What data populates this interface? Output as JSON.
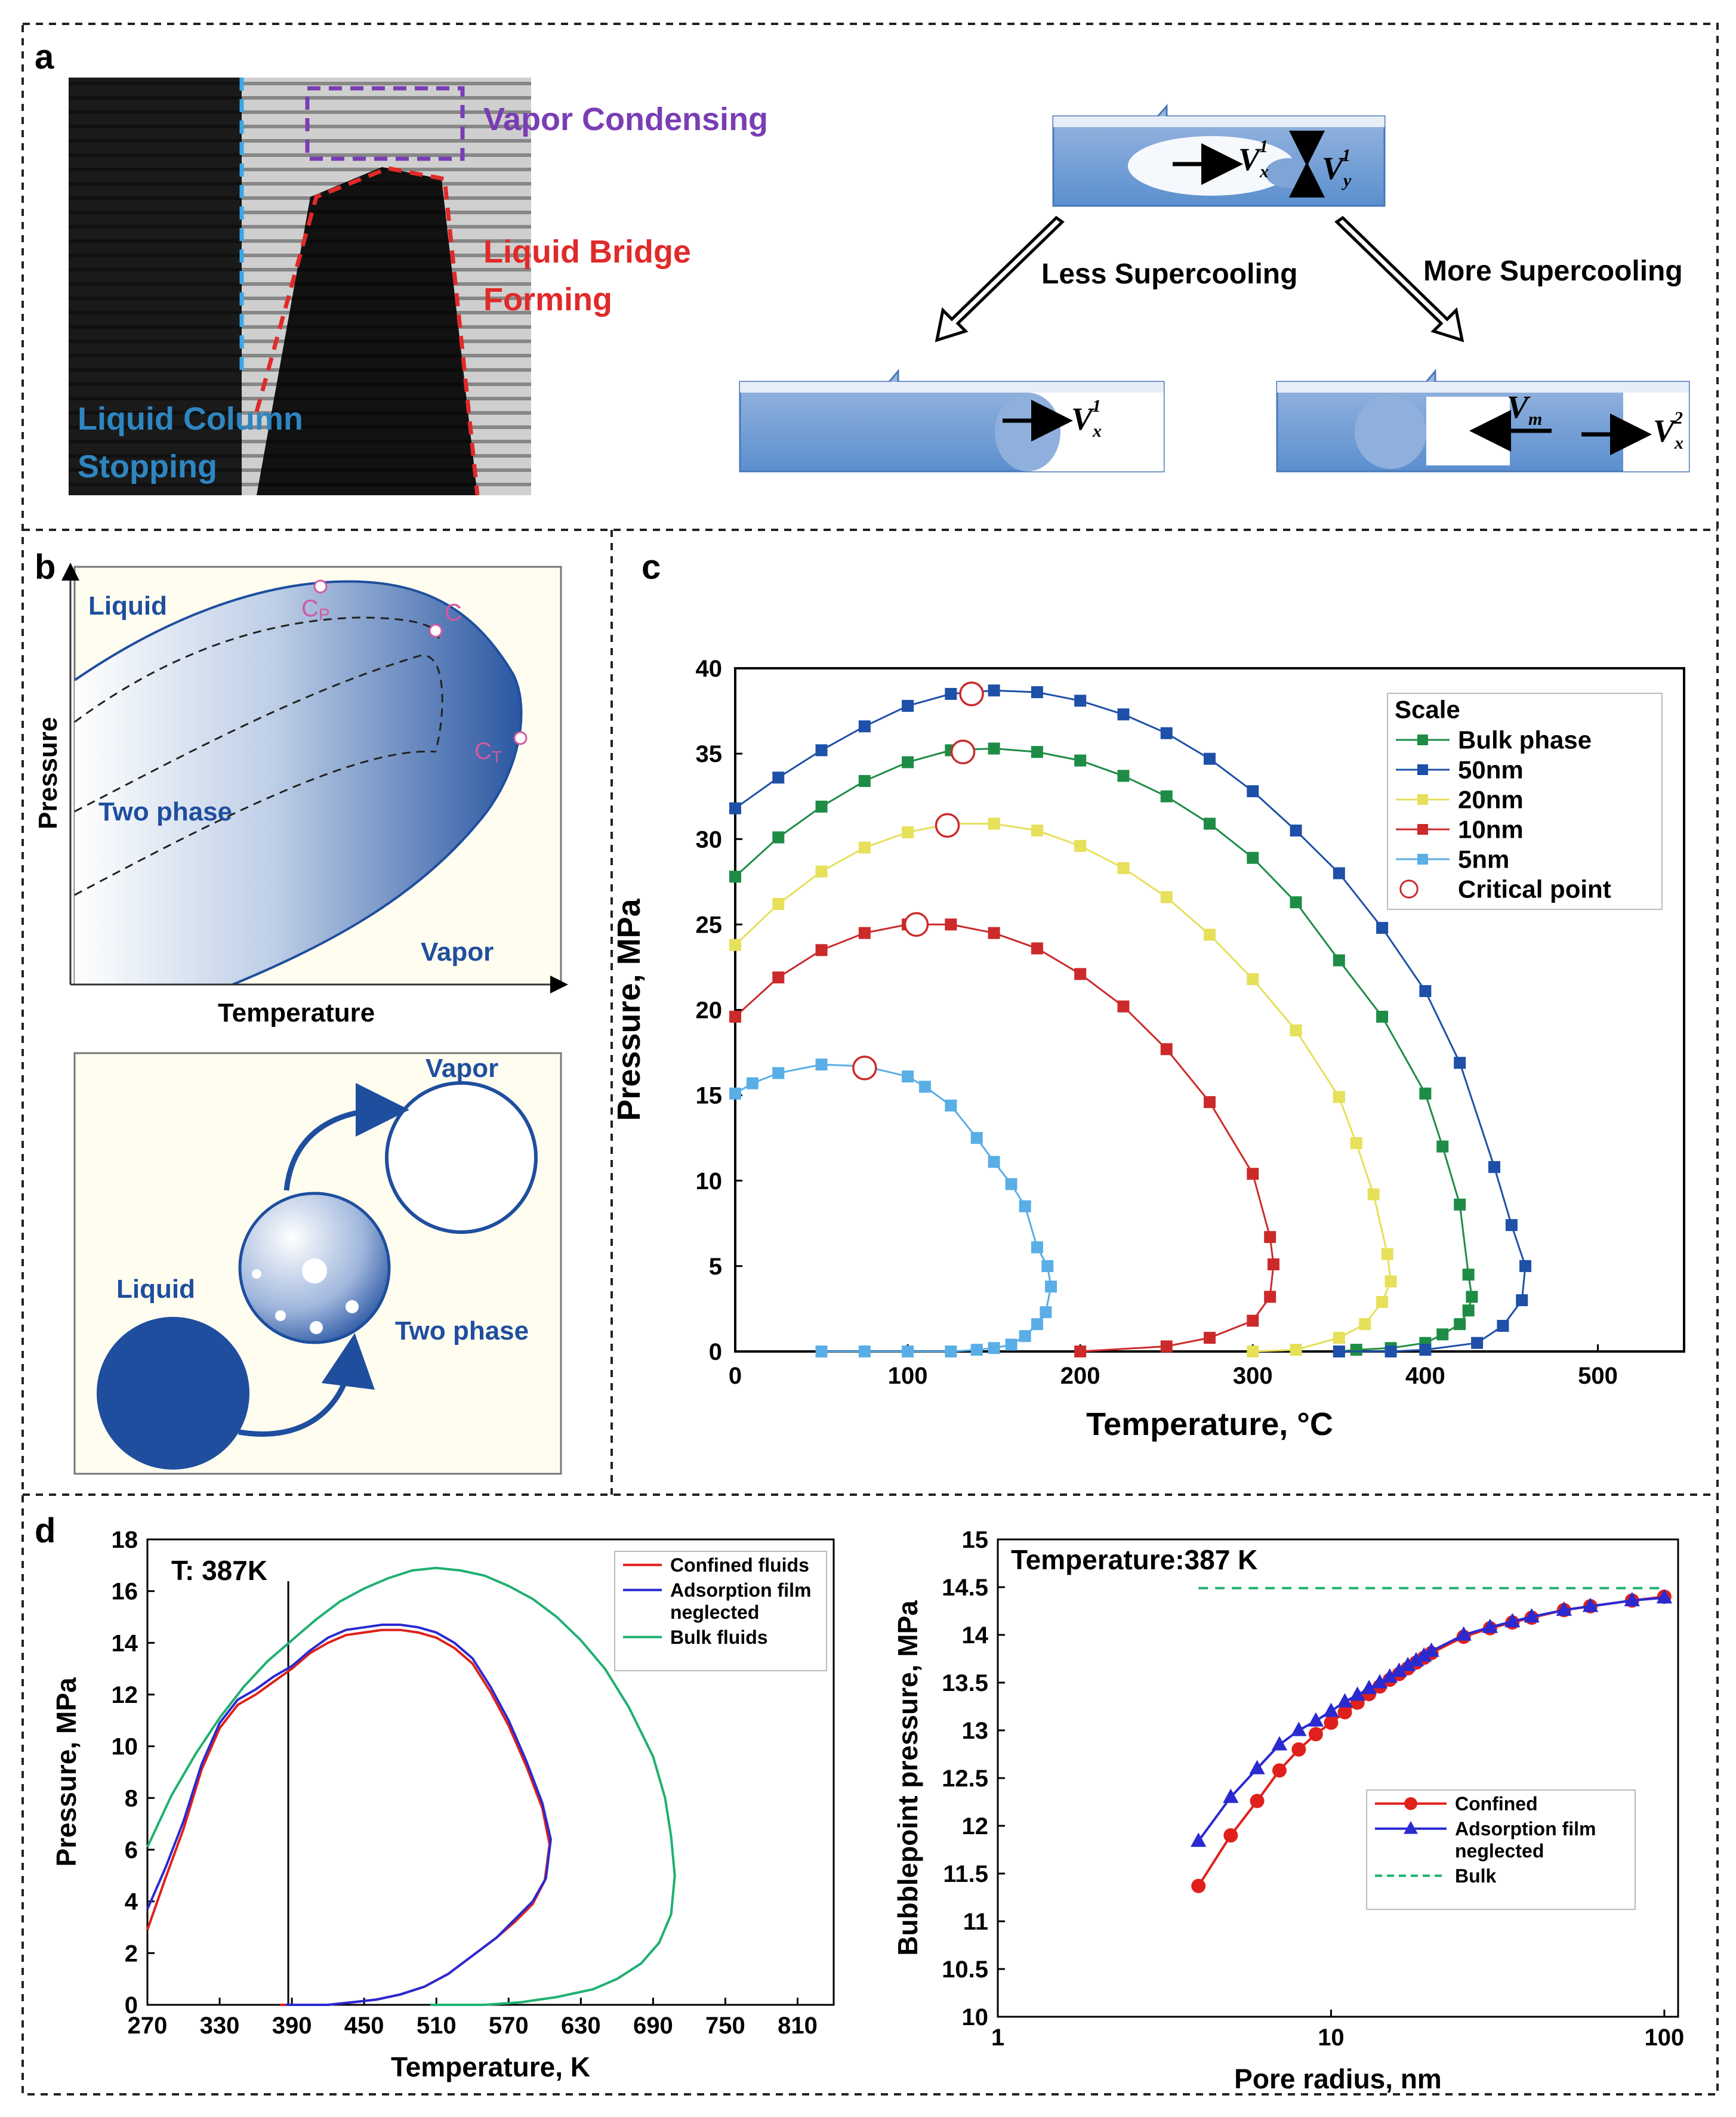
{
  "panels": {
    "a": {
      "letter": "a",
      "labels": {
        "vapor": "Vapor Condensing",
        "bridge1": "Liquid Bridge",
        "bridge2": "Forming",
        "column1": "Liquid Column",
        "column2": "Stopping",
        "less": "Less Supercooling",
        "more": "More Supercooling",
        "vx": "V",
        "sup1": "1",
        "sup2": "2",
        "sub_x": "x",
        "sub_y": "y",
        "sub_m": "m"
      }
    },
    "b": {
      "letter": "b",
      "diagram": {
        "liquid": "Liquid",
        "two_phase": "Two phase",
        "vapor": "Vapor",
        "xlabel": "Temperature",
        "ylabel": "Pressure",
        "cp": "C",
        "cp_sub": "P",
        "c": "C",
        "ct": "C",
        "ct_sub": "T"
      },
      "schematic": {
        "vapor": "Vapor",
        "liquid": "Liquid",
        "two_phase": "Two phase"
      }
    },
    "c": {
      "letter": "c"
    },
    "d": {
      "letter": "d"
    }
  },
  "colors": {
    "liquid_blue": "#1f4e9e",
    "red": "#e0201c",
    "blue": "#2a2ad0",
    "green": "#1fb070",
    "purple": "#7030a0",
    "cyan_label": "#2e86c1"
  },
  "chart_data": [
    {
      "id": "c",
      "type": "line",
      "xlabel": "Temperature, °C",
      "ylabel": "Pressure, MPa",
      "xlim": [
        0,
        550
      ],
      "ylim": [
        0,
        40
      ],
      "xticks": [
        0,
        100,
        200,
        300,
        400,
        500
      ],
      "yticks": [
        0,
        5,
        10,
        15,
        20,
        25,
        30,
        35,
        40
      ],
      "legend": {
        "title": "Scale",
        "position": "top-right"
      },
      "series": [
        {
          "name": "Bulk phase",
          "color": "#1e8c45",
          "x": [
            0,
            25,
            50,
            75,
            100,
            125,
            150,
            175,
            200,
            225,
            250,
            275,
            300,
            325,
            350,
            375,
            400,
            410,
            420,
            425,
            427,
            425,
            420,
            410,
            400,
            380,
            360,
            350
          ],
          "y": [
            27.8,
            30.1,
            31.9,
            33.4,
            34.5,
            35.2,
            35.3,
            35.1,
            34.6,
            33.7,
            32.5,
            30.9,
            28.9,
            26.3,
            22.9,
            19.6,
            15.1,
            12.0,
            8.6,
            4.5,
            3.2,
            2.4,
            1.6,
            1.0,
            0.5,
            0.2,
            0.1,
            0.0
          ]
        },
        {
          "name": "50nm",
          "color": "#1e50a8",
          "x": [
            0,
            25,
            50,
            75,
            100,
            125,
            150,
            175,
            200,
            225,
            250,
            275,
            300,
            325,
            350,
            375,
            400,
            420,
            440,
            450,
            458,
            456,
            445,
            430,
            400,
            380,
            350
          ],
          "y": [
            31.8,
            33.6,
            35.2,
            36.6,
            37.8,
            38.5,
            38.7,
            38.6,
            38.1,
            37.3,
            36.2,
            34.7,
            32.8,
            30.5,
            28.0,
            24.8,
            21.1,
            16.9,
            10.8,
            7.4,
            5.0,
            3.0,
            1.5,
            0.5,
            0.1,
            0.0,
            0.0
          ]
        },
        {
          "name": "20nm",
          "color": "#e6e05a",
          "x": [
            0,
            25,
            50,
            75,
            100,
            125,
            150,
            175,
            200,
            225,
            250,
            275,
            300,
            325,
            350,
            360,
            370,
            378,
            380,
            375,
            365,
            350,
            325,
            300
          ],
          "y": [
            23.8,
            26.2,
            28.1,
            29.5,
            30.4,
            30.9,
            30.9,
            30.5,
            29.6,
            28.3,
            26.6,
            24.4,
            21.8,
            18.8,
            14.9,
            12.2,
            9.2,
            5.7,
            4.1,
            2.9,
            1.6,
            0.8,
            0.1,
            0.0
          ]
        },
        {
          "name": "10nm",
          "color": "#cc2a2a",
          "x": [
            0,
            25,
            50,
            75,
            100,
            125,
            150,
            175,
            200,
            225,
            250,
            275,
            300,
            310,
            312,
            310,
            300,
            275,
            250,
            200
          ],
          "y": [
            19.6,
            21.9,
            23.5,
            24.5,
            25.0,
            25.0,
            24.5,
            23.6,
            22.1,
            20.2,
            17.7,
            14.6,
            10.4,
            6.7,
            5.1,
            3.2,
            1.8,
            0.8,
            0.3,
            0.0
          ]
        },
        {
          "name": "5nm",
          "color": "#5aaee6",
          "x": [
            0,
            10,
            25,
            50,
            75,
            100,
            110,
            125,
            140,
            150,
            160,
            168,
            175,
            181,
            183,
            180,
            175,
            168,
            160,
            150,
            140,
            125,
            100,
            75,
            50
          ],
          "y": [
            15.1,
            15.7,
            16.3,
            16.8,
            16.7,
            16.1,
            15.5,
            14.4,
            12.5,
            11.1,
            9.8,
            8.5,
            6.1,
            5.0,
            3.8,
            2.3,
            1.6,
            0.9,
            0.4,
            0.2,
            0.1,
            0.0,
            0.0,
            0.0,
            0.0
          ]
        },
        {
          "name": "Critical point",
          "color": "#cc2a2a",
          "marker": "open-circle",
          "x": [
            137,
            132,
            123,
            105,
            75
          ],
          "y": [
            38.5,
            35.1,
            30.8,
            25.0,
            16.6
          ]
        }
      ]
    },
    {
      "id": "d-left",
      "type": "line",
      "title": "T: 387K",
      "xlabel": "Temperature, K",
      "ylabel": "Pressure, MPa",
      "xlim": [
        270,
        840
      ],
      "ylim": [
        0,
        18
      ],
      "xticks": [
        270,
        330,
        390,
        450,
        510,
        570,
        630,
        690,
        750,
        810
      ],
      "yticks": [
        0,
        2,
        4,
        6,
        8,
        10,
        12,
        14,
        16,
        18
      ],
      "vline": 387,
      "legend": {
        "position": "top-right"
      },
      "series": [
        {
          "name": "Confined fluids",
          "color": "#e0201c",
          "x": [
            270,
            285,
            300,
            315,
            330,
            345,
            360,
            375,
            390,
            405,
            420,
            435,
            450,
            465,
            480,
            495,
            510,
            525,
            540,
            555,
            570,
            585,
            598,
            604,
            600,
            590,
            575,
            560,
            540,
            520,
            500,
            480,
            460,
            440,
            420,
            400,
            380
          ],
          "y": [
            2.9,
            4.9,
            6.8,
            9.1,
            10.7,
            11.6,
            12.0,
            12.5,
            13.0,
            13.6,
            14.0,
            14.3,
            14.4,
            14.5,
            14.5,
            14.4,
            14.2,
            13.8,
            13.2,
            12.1,
            10.8,
            9.2,
            7.6,
            6.2,
            4.8,
            3.9,
            3.2,
            2.6,
            1.9,
            1.2,
            0.7,
            0.4,
            0.2,
            0.1,
            0.0,
            0.0,
            0.0
          ]
        },
        {
          "name": "Adsorption film neglected",
          "color": "#2a2ad0",
          "x": [
            270,
            285,
            300,
            315,
            330,
            345,
            360,
            375,
            390,
            405,
            420,
            435,
            450,
            465,
            480,
            495,
            510,
            525,
            540,
            555,
            570,
            585,
            598,
            605,
            601,
            590,
            575,
            560,
            540,
            520,
            500,
            480,
            460,
            440,
            420,
            400,
            385
          ],
          "y": [
            3.7,
            5.3,
            7.1,
            9.3,
            10.9,
            11.8,
            12.2,
            12.7,
            13.1,
            13.7,
            14.2,
            14.5,
            14.6,
            14.7,
            14.7,
            14.6,
            14.4,
            14.0,
            13.4,
            12.3,
            11.0,
            9.4,
            7.8,
            6.4,
            4.9,
            4.0,
            3.3,
            2.6,
            1.9,
            1.2,
            0.7,
            0.4,
            0.2,
            0.1,
            0.0,
            0.0,
            0.0
          ]
        },
        {
          "name": "Bulk fluids",
          "color": "#1fb070",
          "x": [
            270,
            290,
            310,
            330,
            350,
            370,
            390,
            410,
            430,
            450,
            470,
            490,
            510,
            530,
            550,
            570,
            590,
            610,
            630,
            650,
            670,
            690,
            700,
            705,
            708,
            705,
            695,
            680,
            660,
            640,
            610,
            580,
            550,
            520,
            505
          ],
          "y": [
            6.1,
            8.1,
            9.7,
            11.1,
            12.3,
            13.3,
            14.1,
            14.9,
            15.6,
            16.1,
            16.5,
            16.8,
            16.9,
            16.8,
            16.6,
            16.2,
            15.7,
            15.0,
            14.1,
            13.0,
            11.5,
            9.6,
            8.0,
            6.5,
            5.0,
            3.5,
            2.4,
            1.6,
            1.0,
            0.6,
            0.3,
            0.1,
            0.0,
            0.0,
            0.0
          ]
        }
      ]
    },
    {
      "id": "d-right",
      "type": "line",
      "title": "Temperature:387 K",
      "xlabel": "Pore radius, nm",
      "ylabel": "Bubblepoint pressure, MPa",
      "xscale": "log",
      "xlim": [
        1,
        110
      ],
      "ylim": [
        10,
        15
      ],
      "xticks": [
        1,
        10,
        100
      ],
      "yticks": [
        10,
        10.5,
        11,
        11.5,
        12,
        12.5,
        13,
        13.5,
        14,
        14.5,
        15
      ],
      "legend": {
        "position": "center-right"
      },
      "series": [
        {
          "name": "Confined",
          "color": "#e0201c",
          "marker": "circle",
          "x": [
            4,
            5,
            6,
            7,
            8,
            9,
            10,
            11,
            12,
            13,
            14,
            15,
            16,
            17,
            18,
            19,
            20,
            25,
            30,
            35,
            40,
            50,
            60,
            80,
            100
          ],
          "y": [
            11.37,
            11.9,
            12.26,
            12.58,
            12.8,
            12.96,
            13.08,
            13.19,
            13.29,
            13.38,
            13.46,
            13.53,
            13.59,
            13.65,
            13.71,
            13.76,
            13.81,
            13.98,
            14.07,
            14.13,
            14.18,
            14.26,
            14.3,
            14.36,
            14.4
          ]
        },
        {
          "name": "Adsorption film neglected",
          "color": "#2a2ad0",
          "marker": "triangle",
          "x": [
            4,
            5,
            6,
            7,
            8,
            9,
            10,
            11,
            12,
            13,
            14,
            15,
            16,
            17,
            18,
            19,
            20,
            25,
            30,
            35,
            40,
            50,
            60,
            80,
            100
          ],
          "y": [
            11.84,
            12.3,
            12.6,
            12.85,
            13.0,
            13.1,
            13.2,
            13.3,
            13.37,
            13.44,
            13.5,
            13.56,
            13.62,
            13.68,
            13.73,
            13.78,
            13.83,
            14.0,
            14.08,
            14.14,
            14.19,
            14.26,
            14.3,
            14.36,
            14.39
          ]
        },
        {
          "name": "Bulk",
          "color": "#1fb070",
          "style": "dashed",
          "x": [
            4,
            100
          ],
          "y": [
            14.49,
            14.49
          ]
        }
      ]
    }
  ]
}
